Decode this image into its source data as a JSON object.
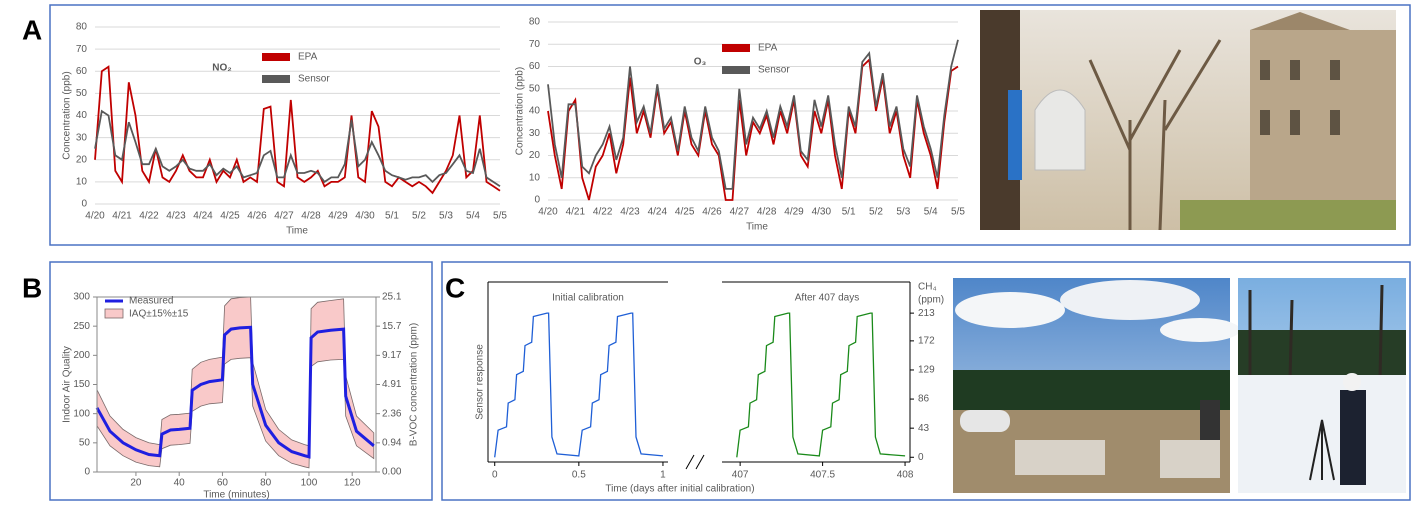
{
  "panel_labels": [
    "A",
    "B",
    "C"
  ],
  "chart_data": [
    {
      "type": "line",
      "title": "NO₂",
      "x_label": "Time",
      "y_label": "Concentration (ppb)",
      "categories": [
        "4/20",
        null,
        null,
        null,
        "4/21",
        null,
        null,
        null,
        "4/22",
        null,
        null,
        null,
        "4/23",
        null,
        null,
        null,
        "4/24",
        null,
        null,
        null,
        "4/25",
        null,
        null,
        null,
        "4/26",
        null,
        null,
        null,
        "4/27",
        null,
        null,
        null,
        "4/28",
        null,
        null,
        null,
        "4/29",
        null,
        null,
        null,
        "4/30",
        null,
        null,
        null,
        "5/1",
        null,
        null,
        null,
        "5/2",
        null,
        null,
        null,
        "5/3",
        null,
        null,
        null,
        "5/4",
        null,
        null,
        null,
        "5/5"
      ],
      "ylim": [
        0,
        80
      ],
      "yticks": [
        0,
        10,
        20,
        30,
        40,
        50,
        60,
        70,
        80
      ],
      "grid": true,
      "series": [
        {
          "name": "EPA",
          "color": "#c00000",
          "values": [
            20,
            60,
            62,
            15,
            10,
            55,
            40,
            15,
            10,
            25,
            12,
            10,
            15,
            22,
            15,
            12,
            12,
            20,
            10,
            15,
            12,
            20,
            10,
            12,
            10,
            43,
            44,
            10,
            8,
            47,
            12,
            10,
            12,
            15,
            8,
            10,
            10,
            12,
            40,
            12,
            10,
            42,
            35,
            10,
            8,
            12,
            10,
            8,
            10,
            8,
            5,
            10,
            15,
            22,
            40,
            12,
            15,
            40,
            10,
            8,
            6
          ]
        },
        {
          "name": "Sensor",
          "color": "#595959",
          "values": [
            25,
            42,
            40,
            22,
            20,
            37,
            28,
            18,
            18,
            25,
            17,
            15,
            17,
            20,
            16,
            15,
            15,
            18,
            13,
            16,
            14,
            17,
            12,
            13,
            14,
            22,
            24,
            12,
            12,
            22,
            14,
            14,
            15,
            14,
            10,
            12,
            12,
            18,
            38,
            17,
            20,
            28,
            22,
            15,
            13,
            12,
            11,
            12,
            12,
            13,
            10,
            13,
            14,
            18,
            22,
            15,
            14,
            25,
            12,
            10,
            8
          ]
        }
      ]
    },
    {
      "type": "line",
      "title": "O₃",
      "x_label": "Time",
      "y_label": "Concentration (ppb)",
      "categories": [
        "4/20",
        null,
        null,
        null,
        "4/21",
        null,
        null,
        null,
        "4/22",
        null,
        null,
        null,
        "4/23",
        null,
        null,
        null,
        "4/24",
        null,
        null,
        null,
        "4/25",
        null,
        null,
        null,
        "4/26",
        null,
        null,
        null,
        "4/27",
        null,
        null,
        null,
        "4/28",
        null,
        null,
        null,
        "4/29",
        null,
        null,
        null,
        "4/30",
        null,
        null,
        null,
        "5/1",
        null,
        null,
        null,
        "5/2",
        null,
        null,
        null,
        "5/3",
        null,
        null,
        null,
        "5/4",
        null,
        null,
        null,
        "5/5"
      ],
      "ylim": [
        0,
        80
      ],
      "yticks": [
        0,
        10,
        20,
        30,
        40,
        50,
        60,
        70,
        80
      ],
      "grid": true,
      "series": [
        {
          "name": "EPA",
          "color": "#c00000",
          "values": [
            40,
            20,
            5,
            40,
            45,
            10,
            0,
            15,
            20,
            30,
            12,
            25,
            55,
            30,
            40,
            28,
            50,
            30,
            35,
            20,
            40,
            25,
            20,
            40,
            25,
            20,
            0,
            0,
            45,
            20,
            35,
            30,
            38,
            25,
            40,
            30,
            45,
            20,
            15,
            40,
            30,
            45,
            20,
            5,
            40,
            30,
            60,
            63,
            40,
            55,
            30,
            40,
            20,
            10,
            45,
            30,
            20,
            5,
            35,
            58,
            60
          ]
        },
        {
          "name": "Sensor",
          "color": "#595959",
          "values": [
            52,
            25,
            10,
            43,
            43,
            15,
            12,
            20,
            25,
            33,
            18,
            28,
            60,
            35,
            42,
            30,
            52,
            32,
            37,
            22,
            42,
            28,
            22,
            42,
            28,
            22,
            5,
            5,
            50,
            25,
            37,
            32,
            40,
            28,
            42,
            33,
            47,
            22,
            18,
            45,
            33,
            47,
            25,
            10,
            42,
            33,
            62,
            66,
            42,
            57,
            33,
            42,
            23,
            15,
            47,
            33,
            23,
            10,
            38,
            60,
            72
          ]
        }
      ]
    },
    {
      "type": "band",
      "x_label": "Time (minutes)",
      "y_label": "Indoor Air Quality",
      "y2_label": "B-VOC concentration (ppm)",
      "x": [
        2,
        8,
        14,
        20,
        26,
        31,
        32,
        36,
        40,
        45,
        46,
        50,
        54,
        60,
        61,
        64,
        68,
        73,
        74,
        80,
        86,
        92,
        98,
        100,
        101,
        104,
        110,
        116,
        117,
        122,
        130
      ],
      "xlim": [
        2,
        131
      ],
      "xticks": [
        20,
        40,
        60,
        80,
        100,
        120
      ],
      "ylim": [
        0,
        300
      ],
      "yticks": [
        0,
        50,
        100,
        150,
        200,
        250,
        300
      ],
      "y2ticks": [
        {
          "value": 0,
          "label": "0.00"
        },
        0.94,
        2.36,
        4.91,
        9.17,
        15.7,
        25.1
      ],
      "series": [
        {
          "name": "Measured",
          "color": "#1f1fe0",
          "values": [
            110,
            70,
            50,
            38,
            30,
            28,
            65,
            72,
            73,
            75,
            140,
            150,
            155,
            158,
            235,
            245,
            247,
            248,
            150,
            80,
            50,
            35,
            28,
            26,
            230,
            240,
            243,
            245,
            130,
            70,
            45
          ]
        },
        {
          "name": "IAQ±15%±15",
          "color": "#f9c9c9",
          "lower": [
            79,
            45,
            28,
            17,
            11,
            9,
            40,
            46,
            47,
            49,
            104,
            113,
            117,
            119,
            185,
            193,
            195,
            196,
            113,
            53,
            28,
            15,
            9,
            7,
            181,
            189,
            192,
            193,
            96,
            45,
            23
          ],
          "upper": [
            141,
            96,
            73,
            59,
            50,
            47,
            90,
            98,
            99,
            101,
            176,
            188,
            193,
            197,
            285,
            297,
            299,
            300,
            188,
            107,
            73,
            55,
            47,
            45,
            280,
            291,
            294,
            297,
            165,
            96,
            67
          ]
        }
      ]
    },
    {
      "type": "line",
      "annotations": [
        "Initial calibration",
        "After 407 days"
      ],
      "x_label": "Time (days after initial calibration)",
      "y_label": "Sensor response",
      "y2_label": [
        "CH₄",
        "(ppm)"
      ],
      "xlim": [
        [
          -0.04,
          1.03
        ],
        [
          406.89,
          408.03
        ]
      ],
      "xticks": [
        [
          0,
          0.5,
          1
        ],
        [
          407,
          407.5,
          408
        ]
      ],
      "ylim": [
        -7,
        259
      ],
      "y2ticks": [
        0,
        43,
        86,
        129,
        172,
        213
      ],
      "series": [
        {
          "color": "#1f5fd6",
          "x": [
            0,
            0.02,
            0.07,
            0.08,
            0.12,
            0.13,
            0.17,
            0.18,
            0.22,
            0.23,
            0.31,
            0.32,
            0.34,
            0.37,
            0.5,
            0.52,
            0.57,
            0.58,
            0.62,
            0.63,
            0.67,
            0.68,
            0.72,
            0.73,
            0.81,
            0.82,
            0.84,
            0.87,
            1.0
          ],
          "values": [
            0,
            40,
            45,
            80,
            85,
            122,
            127,
            165,
            170,
            208,
            213,
            213,
            30,
            5,
            2,
            40,
            45,
            80,
            85,
            122,
            127,
            165,
            170,
            208,
            213,
            213,
            30,
            5,
            2
          ]
        },
        {
          "color": "#1a8a1a",
          "x": [
            406.98,
            407.0,
            407.05,
            407.06,
            407.1,
            407.11,
            407.15,
            407.16,
            407.2,
            407.21,
            407.29,
            407.3,
            407.32,
            407.35,
            407.48,
            407.5,
            407.55,
            407.56,
            407.6,
            407.61,
            407.65,
            407.66,
            407.7,
            407.71,
            407.79,
            407.8,
            407.82,
            407.85,
            408
          ],
          "values": [
            0,
            40,
            45,
            80,
            85,
            122,
            127,
            165,
            170,
            208,
            213,
            213,
            30,
            5,
            2,
            40,
            45,
            80,
            85,
            122,
            127,
            165,
            170,
            208,
            213,
            213,
            30,
            5,
            2
          ]
        }
      ]
    }
  ]
}
